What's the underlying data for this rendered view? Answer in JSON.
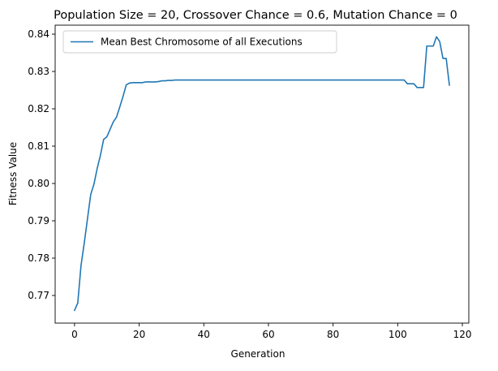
{
  "chart_data": {
    "type": "line",
    "title": "Population Size = 20, Crossover Chance = 0.6, Mutation Chance = 0",
    "xlabel": "Generation",
    "ylabel": "Fitness Value",
    "xlim": [
      -6,
      122
    ],
    "ylim": [
      0.7626,
      0.8424
    ],
    "xticks": [
      0,
      20,
      40,
      60,
      80,
      100,
      120
    ],
    "yticks": [
      0.77,
      0.78,
      0.79,
      0.8,
      0.81,
      0.82,
      0.83,
      0.84
    ],
    "xtick_labels": [
      "0",
      "20",
      "40",
      "60",
      "80",
      "100",
      "120"
    ],
    "ytick_labels": [
      "0.77",
      "0.78",
      "0.79",
      "0.80",
      "0.81",
      "0.82",
      "0.83",
      "0.84"
    ],
    "grid": false,
    "legend_position": "upper-left",
    "color": "#1f77b4",
    "series": [
      {
        "name": "Mean Best Chromosome of all Executions",
        "x": [
          0,
          1,
          2,
          3,
          4,
          5,
          6,
          7,
          8,
          9,
          10,
          11,
          12,
          13,
          14,
          15,
          16,
          17,
          18,
          19,
          20,
          21,
          22,
          23,
          24,
          25,
          26,
          27,
          28,
          29,
          30,
          31,
          35,
          40,
          50,
          60,
          70,
          80,
          90,
          100,
          102,
          103,
          104,
          105,
          106,
          107,
          108,
          109,
          110,
          111,
          112,
          113,
          114,
          115,
          116
        ],
        "y": [
          0.766,
          0.768,
          0.778,
          0.784,
          0.7905,
          0.797,
          0.7998,
          0.804,
          0.8075,
          0.8118,
          0.8125,
          0.8145,
          0.8165,
          0.8178,
          0.8205,
          0.8233,
          0.8264,
          0.8269,
          0.827,
          0.827,
          0.827,
          0.827,
          0.8272,
          0.8272,
          0.8272,
          0.8272,
          0.8273,
          0.8275,
          0.8275,
          0.8276,
          0.8276,
          0.8277,
          0.8277,
          0.8277,
          0.8277,
          0.8277,
          0.8277,
          0.8277,
          0.8277,
          0.8277,
          0.8277,
          0.8267,
          0.8267,
          0.8267,
          0.8257,
          0.8257,
          0.8257,
          0.8368,
          0.8368,
          0.8368,
          0.8393,
          0.838,
          0.8335,
          0.8335,
          0.8263
        ]
      }
    ]
  }
}
